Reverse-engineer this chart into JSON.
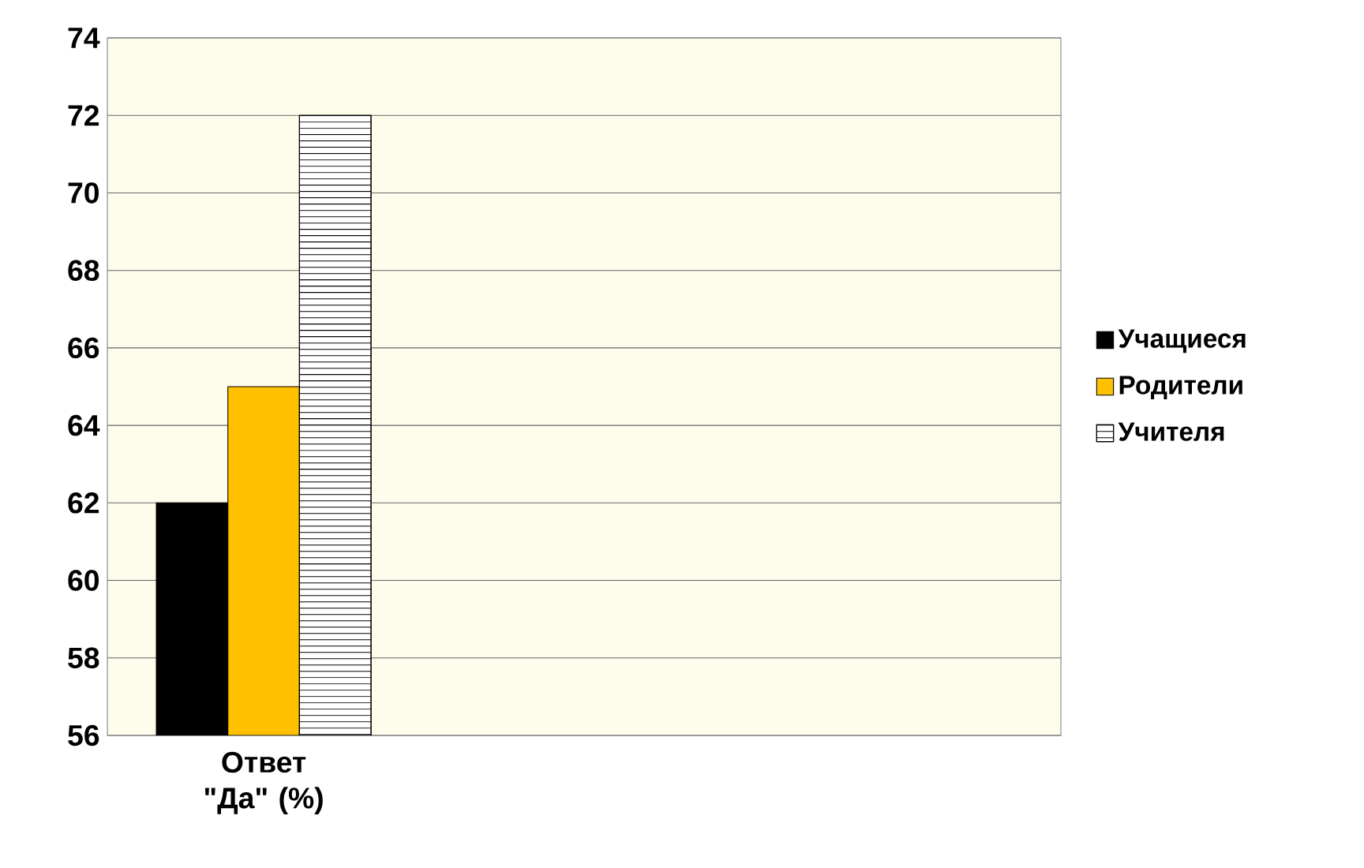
{
  "chart_data": {
    "type": "bar",
    "categories": [
      "Ответ \"Да\" (%)"
    ],
    "series": [
      {
        "name": "Учащиеся",
        "color": "#000000",
        "values": [
          62
        ]
      },
      {
        "name": "Родители",
        "color": "#ffc000",
        "values": [
          65
        ]
      },
      {
        "name": "Учителя",
        "color": "#ffffff",
        "values": [
          72
        ]
      }
    ],
    "ylim": [
      56,
      74
    ],
    "yticks": [
      56,
      58,
      60,
      62,
      64,
      66,
      68,
      70,
      72,
      74
    ],
    "grid": "y",
    "legend": "right"
  }
}
